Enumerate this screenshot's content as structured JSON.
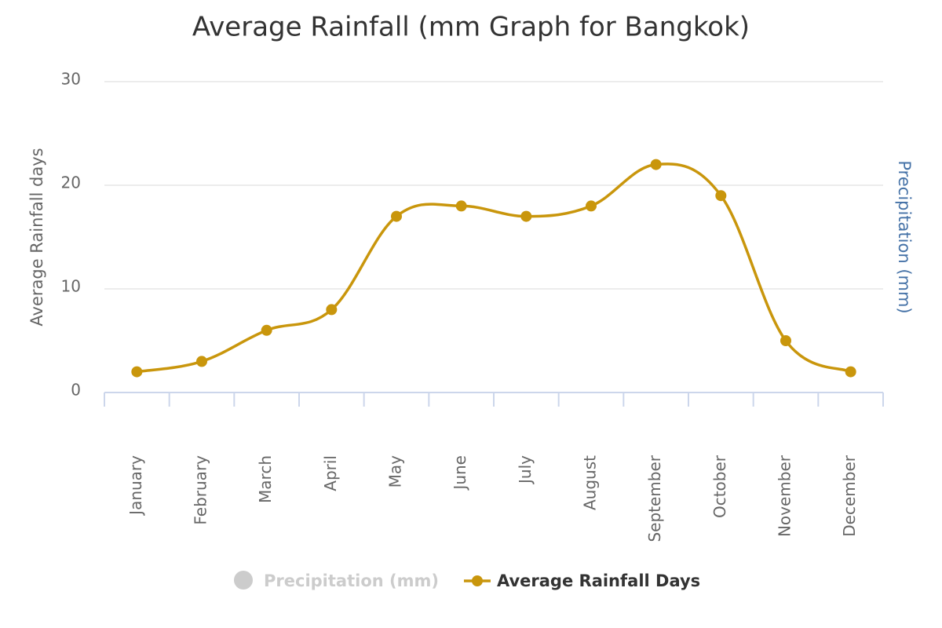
{
  "chart_data": {
    "type": "line",
    "title": "Average Rainfall (mm Graph for Bangkok)",
    "y_label": "Average Rainfall days",
    "y2_label": "Precipitation (mm)",
    "categories": [
      "January",
      "February",
      "March",
      "April",
      "May",
      "June",
      "July",
      "August",
      "September",
      "October",
      "November",
      "December"
    ],
    "series": [
      {
        "name": "Precipitation (mm)",
        "color": "#cccccc",
        "axis": "y2",
        "visible": false
      },
      {
        "name": "Average Rainfall Days",
        "color": "#c9960c",
        "visible": true,
        "values": [
          2,
          3,
          6,
          8,
          17,
          18,
          17,
          18,
          22,
          19,
          5,
          2
        ]
      }
    ],
    "ylim": [
      0,
      30
    ],
    "yticks": [
      0,
      10,
      20,
      30
    ],
    "grid": true,
    "smooth": true,
    "legend": "bottom"
  }
}
